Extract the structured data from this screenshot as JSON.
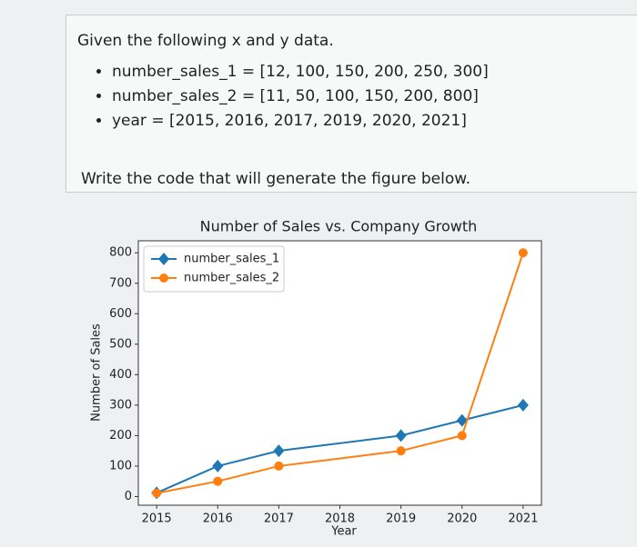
{
  "document": {
    "intro": "Given the following x and y data.",
    "bullets": [
      "number_sales_1 = [12, 100, 150, 200, 250, 300]",
      "number_sales_2 = [11, 50, 100, 150, 200, 800]",
      "year = [2015, 2016, 2017, 2019, 2020, 2021]"
    ],
    "outro": "Write the code that will generate the figure below."
  },
  "chart_data": {
    "type": "line",
    "title": "Number of Sales vs. Company Growth",
    "x_label": "Year",
    "y_label": "Number of Sales",
    "x": [
      2015,
      2016,
      2017,
      2019,
      2020,
      2021
    ],
    "series": [
      {
        "name": "number_sales_1",
        "color": "#1f77b4",
        "marker": "diamond",
        "values": [
          12,
          100,
          150,
          200,
          250,
          300
        ]
      },
      {
        "name": "number_sales_2",
        "color": "#ff7f0e",
        "marker": "circle",
        "values": [
          11,
          50,
          100,
          150,
          200,
          800
        ]
      }
    ],
    "xlim": [
      2014.7,
      2021.3
    ],
    "xticks": [
      2015,
      2016,
      2017,
      2018,
      2019,
      2020,
      2021
    ],
    "ylim": [
      -28.45,
      839.45
    ],
    "yticks": [
      0,
      100,
      200,
      300,
      400,
      500,
      600,
      700,
      800
    ],
    "legend": "upper left",
    "grid": false
  }
}
